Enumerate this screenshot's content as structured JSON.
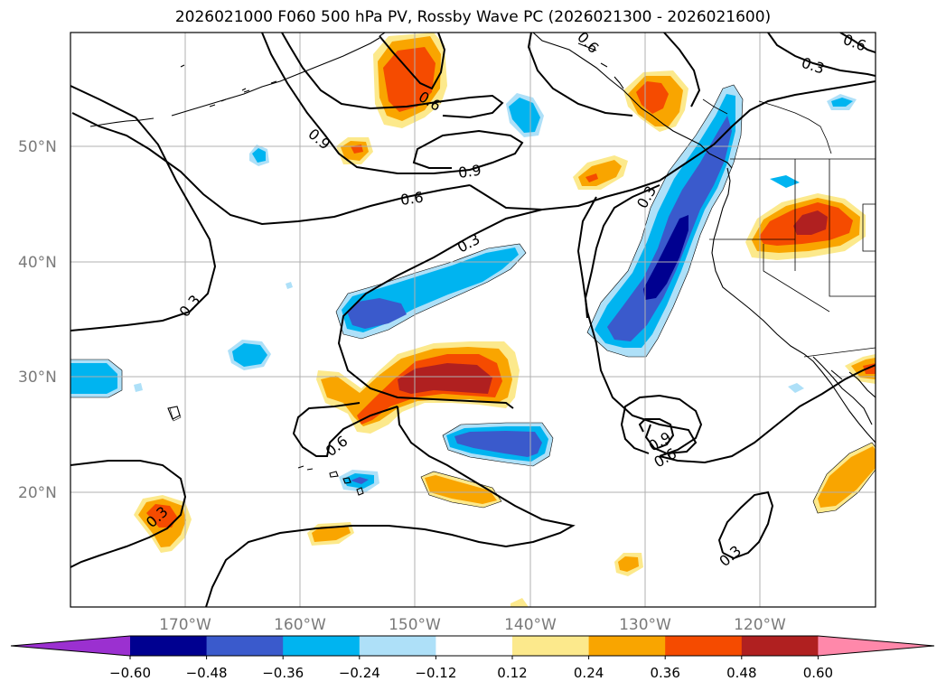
{
  "title": "2026021000 F060 500 hPa PV, Rossby Wave PC (2026021300 - 2026021600)",
  "latitude_labels": [
    "50°N",
    "40°N",
    "30°N",
    "20°N"
  ],
  "longitude_labels": [
    "170°W",
    "160°W",
    "150°W",
    "140°W",
    "130°W",
    "120°W"
  ],
  "colorbar": {
    "ticks": [
      "−0.60",
      "−0.48",
      "−0.36",
      "−0.24",
      "−0.12",
      "0.12",
      "0.24",
      "0.36",
      "0.48",
      "0.60"
    ],
    "colors": [
      "#9b30d0",
      "#000090",
      "#3a5acc",
      "#00b4f0",
      "#aee0f8",
      "#ffffff",
      "#fce98c",
      "#f9a500",
      "#f54b00",
      "#b02020",
      "#ff88aa"
    ]
  },
  "contour_labels": [
    "0.6",
    "0.9",
    "0.9",
    "0.6",
    "0.3",
    "0.3",
    "0.6",
    "0.3",
    "0.6",
    "0.3",
    "0.9",
    "0.6",
    "0.3",
    "0.3",
    "0.6"
  ]
}
